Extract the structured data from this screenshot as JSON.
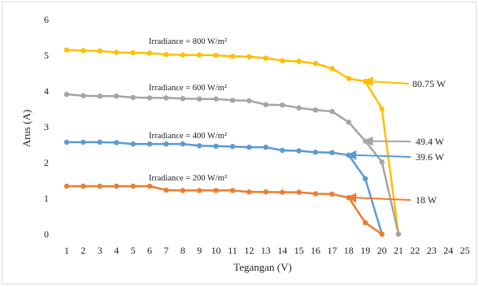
{
  "chart_data": {
    "type": "line",
    "title": "",
    "xlabel": "Tegangan (V)",
    "ylabel": "Arus (A)",
    "xlim": [
      1,
      25
    ],
    "ylim": [
      0,
      6
    ],
    "x_ticks": [
      "1",
      "2",
      "3",
      "4",
      "5",
      "6",
      "7",
      "8",
      "9",
      "10",
      "11",
      "12",
      "13",
      "14",
      "15",
      "16",
      "17",
      "18",
      "19",
      "20",
      "21",
      "22",
      "23",
      "24",
      "25"
    ],
    "y_ticks": [
      "0",
      "1",
      "2",
      "3",
      "4",
      "5",
      "6"
    ],
    "grid": false,
    "series": [
      {
        "key": "irr800",
        "color": "#FFC000",
        "annotation": "Irradiance = 800 W/m²",
        "power_label": "80.75 W",
        "mpp_index": 18,
        "x": [
          1,
          2,
          3,
          4,
          5,
          6,
          7,
          8,
          9,
          10,
          11,
          12,
          13,
          14,
          15,
          16,
          17,
          18,
          19,
          20,
          21
        ],
        "y": [
          5.15,
          5.13,
          5.12,
          5.08,
          5.07,
          5.06,
          5.02,
          5.01,
          5.01,
          5.0,
          4.97,
          4.96,
          4.92,
          4.85,
          4.83,
          4.77,
          4.63,
          4.35,
          4.27,
          3.5,
          0
        ]
      },
      {
        "key": "irr600",
        "color": "#A5A5A5",
        "annotation": "Irradiance = 600 W/m²",
        "power_label": "49.4 W",
        "mpp_index": 18,
        "x": [
          1,
          2,
          3,
          4,
          5,
          6,
          7,
          8,
          9,
          10,
          11,
          12,
          13,
          14,
          15,
          16,
          17,
          18,
          19,
          20,
          21
        ],
        "y": [
          3.91,
          3.87,
          3.86,
          3.86,
          3.82,
          3.81,
          3.81,
          3.79,
          3.78,
          3.78,
          3.74,
          3.73,
          3.62,
          3.61,
          3.53,
          3.47,
          3.43,
          3.13,
          2.6,
          2.02,
          0
        ]
      },
      {
        "key": "irr400",
        "color": "#5B9BD5",
        "annotation": "Irradiance = 400 W/m²",
        "power_label": "39.6 W",
        "mpp_index": 17,
        "x": [
          1,
          2,
          3,
          4,
          5,
          6,
          7,
          8,
          9,
          10,
          11,
          12,
          13,
          14,
          15,
          16,
          17,
          18,
          19,
          20
        ],
        "y": [
          2.57,
          2.57,
          2.57,
          2.56,
          2.52,
          2.52,
          2.52,
          2.52,
          2.47,
          2.46,
          2.45,
          2.43,
          2.43,
          2.34,
          2.33,
          2.29,
          2.28,
          2.21,
          1.55,
          0
        ]
      },
      {
        "key": "irr200",
        "color": "#ED7D31",
        "annotation": "Irradiance = 200  W/m²",
        "power_label": "18 W",
        "mpp_index": 17,
        "x": [
          1,
          2,
          3,
          4,
          5,
          6,
          7,
          8,
          9,
          10,
          11,
          12,
          13,
          14,
          15,
          16,
          17,
          18,
          19,
          20
        ],
        "y": [
          1.34,
          1.34,
          1.34,
          1.34,
          1.34,
          1.34,
          1.23,
          1.22,
          1.22,
          1.22,
          1.22,
          1.18,
          1.18,
          1.17,
          1.17,
          1.13,
          1.12,
          1.02,
          0.32,
          0
        ]
      }
    ]
  }
}
